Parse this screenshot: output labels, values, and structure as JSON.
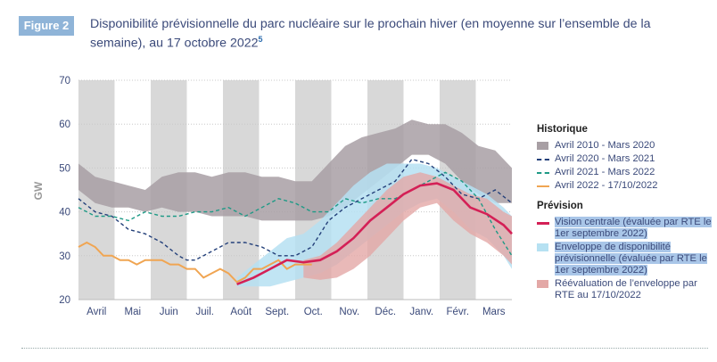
{
  "figure": {
    "badge": "Figure 2",
    "title": "Disponibilité prévisionnelle du parc nucléaire sur le prochain hiver (en moyenne sur l’ensemble de la semaine), au 17 octobre 2022",
    "footnote_ref": "5"
  },
  "legend": {
    "historique_title": "Historique",
    "hist_items": [
      "Avril 2010 - Mars 2020",
      "Avril 2020 - Mars 2021",
      "Avril 2021 - Mars 2022",
      "Avril 2022 - 17/10/2022"
    ],
    "prevision_title": "Prévision",
    "prev_items": [
      "Vision centrale (évaluée par RTE le 1er septembre 2022)",
      "Enveloppe de disponibilité prévisionnelle (évaluée par RTE le 1er septembre 2022)",
      "Réévaluation de l’enveloppe par RTE au 17/10/2022"
    ]
  },
  "colors": {
    "band_hist": "#a89fa4",
    "line_2020": "#24407a",
    "line_2021": "#1e9a86",
    "line_2022": "#f0a552",
    "central": "#d42056",
    "env_sept": "#b6e1f2",
    "env_oct": "#e3a8a6",
    "stripe": "#d8d8d8",
    "axis_text": "#3b4a7a"
  },
  "chart_data": {
    "type": "line",
    "ylabel": "GW",
    "ylim": [
      20,
      70
    ],
    "yticks": [
      20,
      30,
      40,
      50,
      60,
      70
    ],
    "x_unit": "week (0 = début avril)",
    "xlim": [
      0,
      52
    ],
    "months": [
      "Avril",
      "Mai",
      "Juin",
      "Juil.",
      "Août",
      "Sept.",
      "Oct.",
      "Nov.",
      "Déc.",
      "Janv.",
      "Févr.",
      "Mars"
    ],
    "series": [
      {
        "name": "Avril 2010 - Mars 2020",
        "kind": "band",
        "x": [
          0,
          2,
          4,
          6,
          8,
          10,
          12,
          14,
          16,
          18,
          20,
          22,
          24,
          26,
          28,
          30,
          32,
          34,
          36,
          38,
          40,
          42,
          44,
          46,
          48,
          50,
          52
        ],
        "low": [
          45,
          42,
          41,
          41,
          40,
          41,
          40,
          40,
          39,
          39,
          39,
          38,
          38,
          38,
          38,
          39,
          41,
          44,
          47,
          50,
          53,
          53,
          51,
          47,
          44,
          42,
          42
        ],
        "high": [
          51,
          48,
          47,
          46,
          45,
          48,
          49,
          49,
          48,
          49,
          49,
          48,
          48,
          47,
          47,
          51,
          55,
          57,
          58,
          59,
          61,
          60,
          60,
          58,
          55,
          54,
          50
        ]
      },
      {
        "name": "Avril 2020 - Mars 2021",
        "kind": "dashed",
        "x": [
          0,
          2,
          4,
          6,
          8,
          10,
          12,
          13,
          14,
          16,
          18,
          20,
          22,
          24,
          26,
          28,
          30,
          32,
          34,
          36,
          38,
          40,
          42,
          44,
          46,
          48,
          50,
          52
        ],
        "y": [
          43,
          40,
          39,
          36,
          35,
          33,
          30,
          29,
          29,
          31,
          33,
          33,
          32,
          30,
          30,
          32,
          38,
          41,
          43,
          45,
          47,
          52,
          51,
          48,
          44,
          43,
          45,
          42
        ]
      },
      {
        "name": "Avril 2021 - Mars 2022",
        "kind": "dashed",
        "x": [
          0,
          2,
          4,
          6,
          8,
          10,
          12,
          14,
          16,
          18,
          20,
          22,
          24,
          26,
          28,
          30,
          32,
          34,
          36,
          38,
          40,
          42,
          44,
          46,
          48,
          50,
          52
        ],
        "y": [
          41,
          39,
          39,
          38,
          40,
          39,
          39,
          40,
          40,
          41,
          39,
          41,
          43,
          42,
          40,
          40,
          43,
          42,
          43,
          43,
          45,
          47,
          49,
          47,
          43,
          36,
          30
        ]
      },
      {
        "name": "Avril 2022 - 17/10/2022",
        "kind": "solid",
        "x": [
          0,
          1,
          2,
          3,
          4,
          5,
          6,
          7,
          8,
          9,
          10,
          11,
          12,
          13,
          14,
          15,
          16,
          17,
          18,
          19,
          20,
          21,
          22,
          23,
          24,
          25,
          26,
          27,
          28
        ],
        "y": [
          32,
          33,
          32,
          30,
          30,
          29,
          29,
          28,
          29,
          29,
          29,
          28,
          28,
          27,
          27,
          25,
          26,
          27,
          26,
          24,
          25,
          27,
          27,
          28,
          29,
          27,
          28,
          28,
          28
        ]
      },
      {
        "name": "Vision centrale (évaluée par RTE le 1er septembre 2022)",
        "kind": "solid",
        "x": [
          19,
          21,
          23,
          25,
          27,
          29,
          31,
          33,
          35,
          37,
          39,
          41,
          43,
          45,
          47,
          49,
          51,
          52
        ],
        "y": [
          23.5,
          25,
          27,
          29,
          28.5,
          29,
          31,
          34,
          38,
          41,
          44,
          46,
          46.5,
          45,
          41,
          39.5,
          37,
          35
        ]
      },
      {
        "name": "Enveloppe de disponibilité prévisionnelle (évaluée par RTE le 1er septembre 2022)",
        "kind": "band",
        "x": [
          19,
          21,
          23,
          25,
          27,
          29,
          31,
          33,
          35,
          37,
          39,
          41,
          43,
          45,
          47,
          49,
          51,
          52
        ],
        "low": [
          23,
          23,
          23,
          24,
          25,
          26,
          28,
          31,
          34,
          37,
          40,
          42,
          43,
          40,
          36,
          34,
          30,
          27
        ],
        "high": [
          25,
          28,
          31,
          34,
          35,
          38,
          42,
          46,
          49,
          51,
          51,
          51,
          50,
          48,
          46,
          44,
          41,
          39
        ]
      },
      {
        "name": "Réévaluation de l’enveloppe par RTE au 17/10/2022",
        "kind": "band",
        "x": [
          27,
          29,
          31,
          33,
          35,
          37,
          39,
          41,
          43,
          45,
          47,
          49,
          51,
          52
        ],
        "low": [
          25,
          24.5,
          25,
          27,
          30,
          34,
          38,
          41,
          42,
          38,
          35,
          33,
          30,
          28
        ],
        "high": [
          29,
          30,
          33,
          37,
          41,
          45,
          48,
          49,
          48,
          46,
          44,
          43,
          40,
          39
        ]
      }
    ]
  }
}
